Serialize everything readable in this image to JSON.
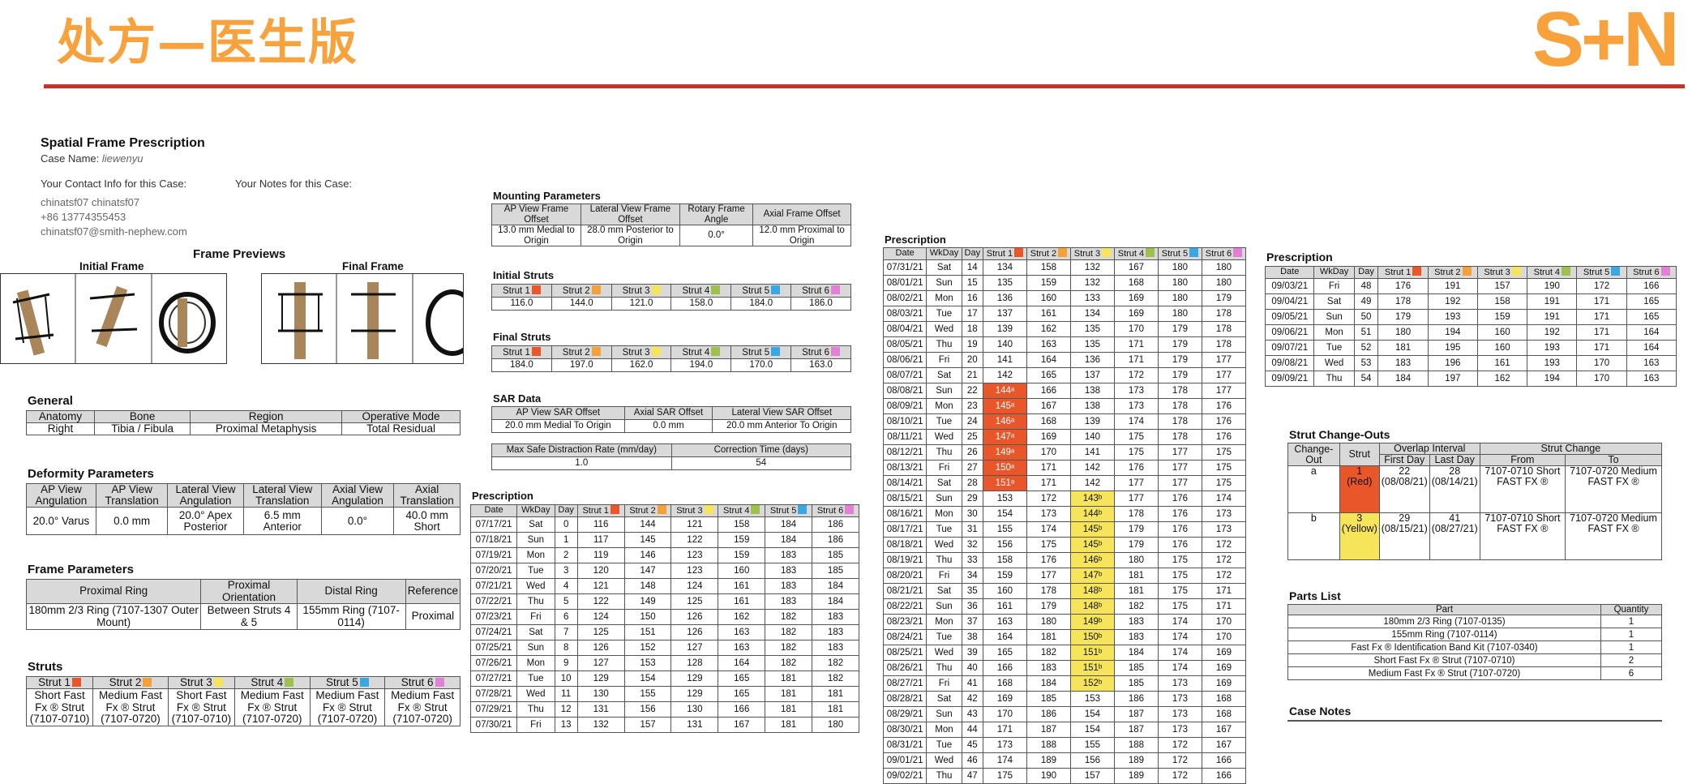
{
  "slide": {
    "title": "处方—医生版",
    "logo": "S+N"
  },
  "header": {
    "title": "Spatial Frame Prescription",
    "case_label": "Case Name:",
    "case_name": "liewenyu",
    "contact_label": "Your Contact Info for this Case:",
    "notes_label": "Your Notes for this Case:",
    "contact_name": "chinatsf07 chinatsf07",
    "contact_phone": "+86 13774355453",
    "contact_email": "chinatsf07@smith-nephew.com"
  },
  "colors": {
    "s1": "#e8562a",
    "s2": "#f3a13a",
    "s3": "#f6e55a",
    "s4": "#9ec04f",
    "s5": "#3ba7e1",
    "s6": "#e27fd6"
  },
  "previews": {
    "title": "Frame Previews",
    "initial": "Initial Frame",
    "final": "Final Frame"
  },
  "general": {
    "title": "General",
    "headers": [
      "Anatomy",
      "Bone",
      "Region",
      "Operative Mode"
    ],
    "values": [
      "Right",
      "Tibia / Fibula",
      "Proximal Metaphysis",
      "Total Residual"
    ]
  },
  "deformity": {
    "title": "Deformity Parameters",
    "headers": [
      "AP View Angulation",
      "AP View Translation",
      "Lateral View Angulation",
      "Lateral View Translation",
      "Axial View Angulation",
      "Axial Translation"
    ],
    "values": [
      "20.0° Varus",
      "0.0 mm",
      "20.0° Apex Posterior",
      "6.5 mm Anterior",
      "0.0°",
      "40.0 mm Short"
    ]
  },
  "frame_params": {
    "title": "Frame Parameters",
    "headers": [
      "Proximal Ring",
      "Proximal Orientation",
      "Distal Ring",
      "Reference"
    ],
    "values": [
      "180mm 2/3 Ring (7107-1307 Outer Mount)",
      "Between Struts 4 & 5",
      "155mm Ring (7107-0114)",
      "Proximal"
    ]
  },
  "struts": {
    "title": "Struts",
    "headers": [
      "Strut 1",
      "Strut 2",
      "Strut 3",
      "Strut 4",
      "Strut 5",
      "Strut 6"
    ],
    "values": [
      "Short Fast Fx ® Strut (7107-0710)",
      "Medium Fast Fx ® Strut (7107-0720)",
      "Short Fast Fx ® Strut (7107-0710)",
      "Medium Fast Fx ® Strut (7107-0720)",
      "Medium Fast Fx ® Strut (7107-0720)",
      "Medium Fast Fx ® Strut (7107-0720)"
    ]
  },
  "mounting": {
    "title": "Mounting Parameters",
    "headers": [
      "AP View Frame Offset",
      "Lateral View Frame Offset",
      "Rotary Frame Angle",
      "Axial Frame Offset"
    ],
    "values": [
      "13.0 mm Medial to Origin",
      "28.0 mm Posterior to Origin",
      "0.0°",
      "12.0 mm Proximal to Origin"
    ]
  },
  "initial_struts": {
    "title": "Initial Struts",
    "values": [
      "116.0",
      "144.0",
      "121.0",
      "158.0",
      "184.0",
      "186.0"
    ]
  },
  "final_struts": {
    "title": "Final Struts",
    "values": [
      "184.0",
      "197.0",
      "162.0",
      "194.0",
      "170.0",
      "163.0"
    ]
  },
  "sar": {
    "title": "SAR Data",
    "headers": [
      "AP View SAR Offset",
      "Axial SAR Offset",
      "Lateral View SAR Offset"
    ],
    "values": [
      "20.0 mm Medial To Origin",
      "0.0 mm",
      "20.0 mm Anterior To Origin"
    ],
    "headers2": [
      "Max Safe Distraction Rate (mm/day)",
      "Correction Time (days)"
    ],
    "values2": [
      "1.0",
      "54"
    ]
  },
  "rx_headers": [
    "Date",
    "WkDay",
    "Day",
    "Strut 1",
    "Strut 2",
    "Strut 3",
    "Strut 4",
    "Strut 5",
    "Strut 6"
  ],
  "rx_title": "Prescription",
  "rx1": [
    [
      "07/17/21",
      "Sat",
      "0",
      "116",
      "144",
      "121",
      "158",
      "184",
      "186"
    ],
    [
      "07/18/21",
      "Sun",
      "1",
      "117",
      "145",
      "122",
      "159",
      "184",
      "186"
    ],
    [
      "07/19/21",
      "Mon",
      "2",
      "119",
      "146",
      "123",
      "159",
      "183",
      "185"
    ],
    [
      "07/20/21",
      "Tue",
      "3",
      "120",
      "147",
      "123",
      "160",
      "183",
      "185"
    ],
    [
      "07/21/21",
      "Wed",
      "4",
      "121",
      "148",
      "124",
      "161",
      "183",
      "184"
    ],
    [
      "07/22/21",
      "Thu",
      "5",
      "122",
      "149",
      "125",
      "161",
      "183",
      "184"
    ],
    [
      "07/23/21",
      "Fri",
      "6",
      "124",
      "150",
      "126",
      "162",
      "182",
      "183"
    ],
    [
      "07/24/21",
      "Sat",
      "7",
      "125",
      "151",
      "126",
      "163",
      "182",
      "183"
    ],
    [
      "07/25/21",
      "Sun",
      "8",
      "126",
      "152",
      "127",
      "163",
      "182",
      "183"
    ],
    [
      "07/26/21",
      "Mon",
      "9",
      "127",
      "153",
      "128",
      "164",
      "182",
      "182"
    ],
    [
      "07/27/21",
      "Tue",
      "10",
      "129",
      "154",
      "129",
      "165",
      "181",
      "182"
    ],
    [
      "07/28/21",
      "Wed",
      "11",
      "130",
      "155",
      "129",
      "165",
      "181",
      "181"
    ],
    [
      "07/29/21",
      "Thu",
      "12",
      "131",
      "156",
      "130",
      "166",
      "181",
      "181"
    ],
    [
      "07/30/21",
      "Fri",
      "13",
      "132",
      "157",
      "131",
      "167",
      "181",
      "180"
    ]
  ],
  "rx2": [
    [
      "07/31/21",
      "Sat",
      "14",
      "134",
      "158",
      "132",
      "167",
      "180",
      "180"
    ],
    [
      "08/01/21",
      "Sun",
      "15",
      "135",
      "159",
      "132",
      "168",
      "180",
      "180"
    ],
    [
      "08/02/21",
      "Mon",
      "16",
      "136",
      "160",
      "133",
      "169",
      "180",
      "179"
    ],
    [
      "08/03/21",
      "Tue",
      "17",
      "137",
      "161",
      "134",
      "169",
      "180",
      "178"
    ],
    [
      "08/04/21",
      "Wed",
      "18",
      "139",
      "162",
      "135",
      "170",
      "179",
      "178"
    ],
    [
      "08/05/21",
      "Thu",
      "19",
      "140",
      "163",
      "135",
      "171",
      "179",
      "178"
    ],
    [
      "08/06/21",
      "Fri",
      "20",
      "141",
      "164",
      "136",
      "171",
      "179",
      "177"
    ],
    [
      "08/07/21",
      "Sat",
      "21",
      "142",
      "165",
      "137",
      "172",
      "179",
      "177"
    ],
    [
      "08/08/21",
      "Sun",
      "22",
      "144ᵃ",
      "166",
      "138",
      "173",
      "178",
      "177"
    ],
    [
      "08/09/21",
      "Mon",
      "23",
      "145ᵃ",
      "167",
      "138",
      "173",
      "178",
      "176"
    ],
    [
      "08/10/21",
      "Tue",
      "24",
      "146ᵃ",
      "168",
      "139",
      "174",
      "178",
      "176"
    ],
    [
      "08/11/21",
      "Wed",
      "25",
      "147ᵃ",
      "169",
      "140",
      "175",
      "178",
      "176"
    ],
    [
      "08/12/21",
      "Thu",
      "26",
      "149ᵃ",
      "170",
      "141",
      "175",
      "177",
      "175"
    ],
    [
      "08/13/21",
      "Fri",
      "27",
      "150ᵃ",
      "171",
      "142",
      "176",
      "177",
      "175"
    ],
    [
      "08/14/21",
      "Sat",
      "28",
      "151ᵃ",
      "171",
      "142",
      "177",
      "177",
      "175"
    ],
    [
      "08/15/21",
      "Sun",
      "29",
      "153",
      "172",
      "143ᵇ",
      "177",
      "176",
      "174"
    ],
    [
      "08/16/21",
      "Mon",
      "30",
      "154",
      "173",
      "144ᵇ",
      "178",
      "176",
      "173"
    ],
    [
      "08/17/21",
      "Tue",
      "31",
      "155",
      "174",
      "145ᵇ",
      "179",
      "176",
      "173"
    ],
    [
      "08/18/21",
      "Wed",
      "32",
      "156",
      "175",
      "145ᵇ",
      "179",
      "176",
      "172"
    ],
    [
      "08/19/21",
      "Thu",
      "33",
      "158",
      "176",
      "146ᵇ",
      "180",
      "175",
      "172"
    ],
    [
      "08/20/21",
      "Fri",
      "34",
      "159",
      "177",
      "147ᵇ",
      "181",
      "175",
      "172"
    ],
    [
      "08/21/21",
      "Sat",
      "35",
      "160",
      "178",
      "148ᵇ",
      "181",
      "175",
      "171"
    ],
    [
      "08/22/21",
      "Sun",
      "36",
      "161",
      "179",
      "148ᵇ",
      "182",
      "175",
      "171"
    ],
    [
      "08/23/21",
      "Mon",
      "37",
      "163",
      "180",
      "149ᵇ",
      "183",
      "174",
      "170"
    ],
    [
      "08/24/21",
      "Tue",
      "38",
      "164",
      "181",
      "150ᵇ",
      "183",
      "174",
      "170"
    ],
    [
      "08/25/21",
      "Wed",
      "39",
      "165",
      "182",
      "151ᵇ",
      "184",
      "174",
      "169"
    ],
    [
      "08/26/21",
      "Thu",
      "40",
      "166",
      "183",
      "151ᵇ",
      "185",
      "174",
      "169"
    ],
    [
      "08/27/21",
      "Fri",
      "41",
      "168",
      "184",
      "152ᵇ",
      "185",
      "173",
      "169"
    ],
    [
      "08/28/21",
      "Sat",
      "42",
      "169",
      "185",
      "153",
      "186",
      "173",
      "168"
    ],
    [
      "08/29/21",
      "Sun",
      "43",
      "170",
      "186",
      "154",
      "187",
      "173",
      "168"
    ],
    [
      "08/30/21",
      "Mon",
      "44",
      "171",
      "187",
      "154",
      "187",
      "173",
      "167"
    ],
    [
      "08/31/21",
      "Tue",
      "45",
      "173",
      "188",
      "155",
      "188",
      "172",
      "167"
    ],
    [
      "09/01/21",
      "Wed",
      "46",
      "174",
      "189",
      "156",
      "189",
      "172",
      "166"
    ],
    [
      "09/02/21",
      "Thu",
      "47",
      "175",
      "190",
      "157",
      "189",
      "172",
      "166"
    ]
  ],
  "rx3": [
    [
      "09/03/21",
      "Fri",
      "48",
      "176",
      "191",
      "157",
      "190",
      "172",
      "166"
    ],
    [
      "09/04/21",
      "Sat",
      "49",
      "178",
      "192",
      "158",
      "191",
      "171",
      "165"
    ],
    [
      "09/05/21",
      "Sun",
      "50",
      "179",
      "193",
      "159",
      "191",
      "171",
      "165"
    ],
    [
      "09/06/21",
      "Mon",
      "51",
      "180",
      "194",
      "160",
      "192",
      "171",
      "164"
    ],
    [
      "09/07/21",
      "Tue",
      "52",
      "181",
      "195",
      "160",
      "193",
      "171",
      "164"
    ],
    [
      "09/08/21",
      "Wed",
      "53",
      "183",
      "196",
      "161",
      "193",
      "170",
      "163"
    ],
    [
      "09/09/21",
      "Thu",
      "54",
      "184",
      "197",
      "162",
      "194",
      "170",
      "163"
    ]
  ],
  "changeouts": {
    "title": "Strut Change-Outs",
    "h_change_out": "Change-Out",
    "h_strut": "Strut",
    "h_overlap": "Overlap Interval",
    "h_strut_change": "Strut Change",
    "h_first": "First Day",
    "h_last": "Last Day",
    "h_from": "From",
    "h_to": "To",
    "rows": [
      {
        "id": "a",
        "strut": "1",
        "strut_color": "(Red)",
        "first": "22",
        "first_date": "(08/08/21)",
        "last": "28",
        "last_date": "(08/14/21)",
        "from": "7107-0710 Short FAST FX ®",
        "to": "7107-0720 Medium FAST FX ®"
      },
      {
        "id": "b",
        "strut": "3",
        "strut_color": "(Yellow)",
        "first": "29",
        "first_date": "(08/15/21)",
        "last": "41",
        "last_date": "(08/27/21)",
        "from": "7107-0710 Short FAST FX ®",
        "to": "7107-0720 Medium FAST FX ®"
      }
    ]
  },
  "parts": {
    "title": "Parts List",
    "headers": [
      "Part",
      "Quantity"
    ],
    "rows": [
      [
        "180mm 2/3 Ring (7107-0135)",
        "1"
      ],
      [
        "155mm Ring (7107-0114)",
        "1"
      ],
      [
        "Fast Fx ® Identification Band Kit (7107-0340)",
        "1"
      ],
      [
        "Short Fast Fx ® Strut (7107-0710)",
        "2"
      ],
      [
        "Medium Fast Fx ® Strut (7107-0720)",
        "6"
      ]
    ]
  },
  "case_notes": {
    "title": "Case Notes"
  }
}
